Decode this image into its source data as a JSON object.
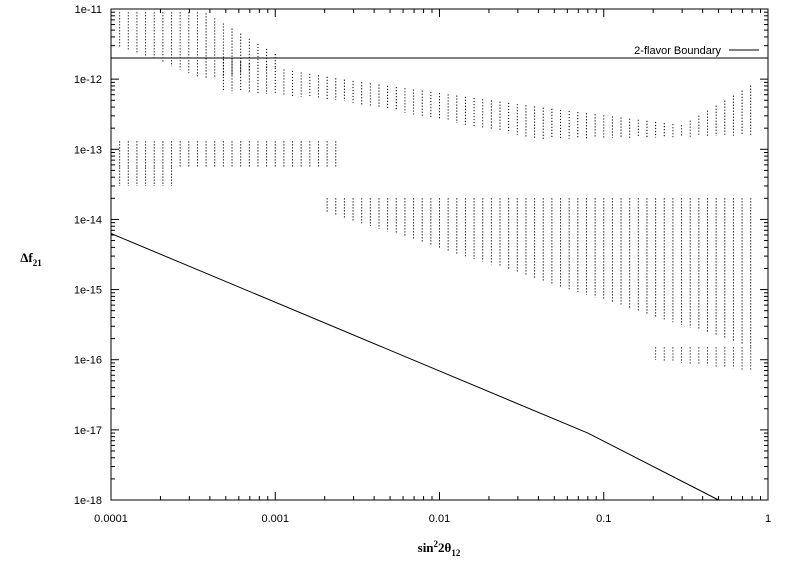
{
  "chart_data": {
    "type": "scatter",
    "title": "",
    "xlabel": {
      "main": "sin",
      "sup": "2",
      "mid": "2θ",
      "sub": "12"
    },
    "ylabel": {
      "main": "Δf",
      "sub": "21"
    },
    "x_scale": "log",
    "y_scale": "log",
    "xlim": [
      0.0001,
      1
    ],
    "ylim": [
      1e-18,
      1e-11
    ],
    "grid": false,
    "legend_position": "top-right",
    "x_ticks": [
      {
        "value": 0.0001,
        "label": "0.0001"
      },
      {
        "value": 0.001,
        "label": "0.001"
      },
      {
        "value": 0.01,
        "label": "0.01"
      },
      {
        "value": 0.1,
        "label": "0.1"
      },
      {
        "value": 1,
        "label": "1"
      }
    ],
    "y_ticks": [
      {
        "value": 1e-18,
        "label": "1e-18"
      },
      {
        "value": 1e-17,
        "label": "1e-17"
      },
      {
        "value": 1e-16,
        "label": "1e-16"
      },
      {
        "value": 1e-15,
        "label": "1e-15"
      },
      {
        "value": 1e-14,
        "label": "1e-14"
      },
      {
        "value": 1e-13,
        "label": "1e-13"
      },
      {
        "value": 1e-12,
        "label": "1e-12"
      },
      {
        "value": 1e-11,
        "label": "1e-11"
      }
    ],
    "series": [
      {
        "name": "2-flavor Boundary",
        "kind": "line",
        "color": "#000000",
        "points": [
          [
            0.0001,
            2e-12
          ],
          [
            1,
            2e-12
          ]
        ]
      },
      {
        "kind": "line",
        "color": "#000000",
        "points": [
          [
            0.0001,
            6.3e-15
          ],
          [
            0.08,
            9e-18
          ],
          [
            0.5,
            1e-18
          ]
        ]
      },
      {
        "kind": "region",
        "color": "#000000",
        "columns_per_decade": 19,
        "bands": [
          {
            "x": [
              0.00011,
              0.00037
            ],
            "lower": [
              3e-12,
              1e-12
            ],
            "upper": [
              9e-12,
              9e-12
            ]
          },
          {
            "x": [
              0.00037,
              0.0011
            ],
            "lower": [
              1e-12,
              1.5e-12
            ],
            "upper": [
              9e-12,
              2e-12
            ]
          },
          {
            "x": [
              0.00045,
              0.0025
            ],
            "lower": [
              7e-13,
              5e-13
            ],
            "upper": [
              2e-12,
              1e-12
            ]
          },
          {
            "x": [
              0.0025,
              0.04
            ],
            "lower": [
              5e-13,
              1.4e-13
            ],
            "upper": [
              1e-12,
              4e-13
            ]
          },
          {
            "x": [
              0.04,
              0.3
            ],
            "lower": [
              1.4e-13,
              1.5e-13
            ],
            "upper": [
              4e-13,
              2.2e-13
            ]
          },
          {
            "x": [
              0.3,
              0.85
            ],
            "lower": [
              1.5e-13,
              1.6e-13
            ],
            "upper": [
              2.2e-13,
              9e-13
            ]
          },
          {
            "x": [
              0.00011,
              0.0026
            ],
            "lower": [
              5.5e-14,
              5.5e-14
            ],
            "upper": [
              1.3e-13,
              1.3e-13
            ]
          },
          {
            "x": [
              0.00011,
              0.00025
            ],
            "lower": [
              3e-14,
              3e-14
            ],
            "upper": [
              5.5e-14,
              5.5e-14
            ]
          },
          {
            "x": [
              0.002,
              0.8
            ],
            "lower": [
              1.3e-14,
              1.5e-16
            ],
            "upper": [
              2e-14,
              2e-14
            ]
          },
          {
            "x": [
              0.2,
              0.8
            ],
            "lower": [
              1e-16,
              7e-17
            ],
            "upper": [
              1.5e-16,
              1.5e-16
            ]
          }
        ]
      }
    ]
  }
}
